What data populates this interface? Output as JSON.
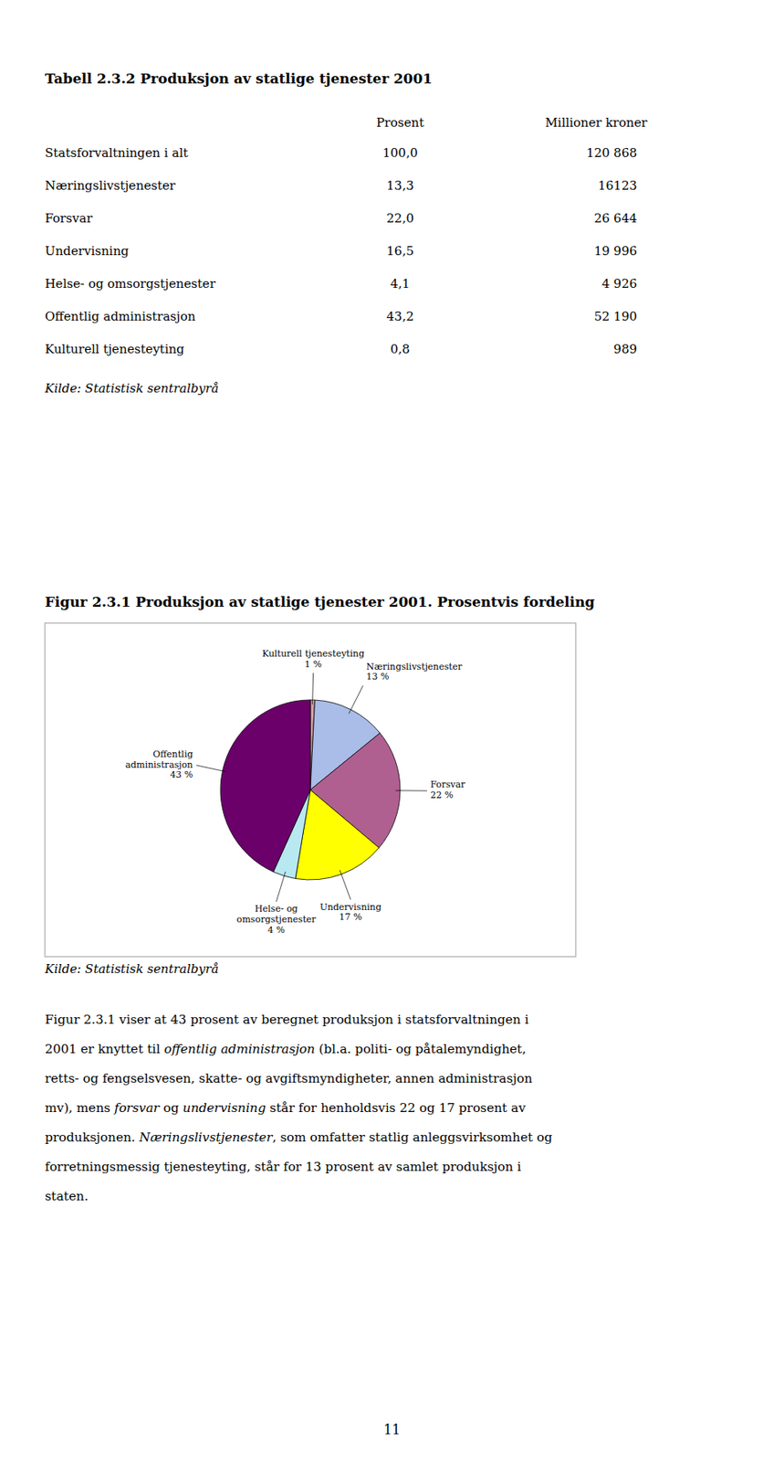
{
  "page_title": "Tabell 2.3.2 Produksjon av statlige tjenester 2001",
  "table": {
    "headers": [
      "Prosent",
      "Millioner kroner"
    ],
    "rows": [
      [
        "Statsforvaltningen i alt",
        "100,0",
        "120 868"
      ],
      [
        "Næringslivstjenester",
        "13,3",
        "16123"
      ],
      [
        "Forsvar",
        "22,0",
        "26 644"
      ],
      [
        "Undervisning",
        "16,5",
        "19 996"
      ],
      [
        "Helse- og omsorgstjenester",
        "4,1",
        "4 926"
      ],
      [
        "Offentlig administrasjon",
        "43,2",
        "52 190"
      ],
      [
        "Kulturell tjenesteyting",
        "0,8",
        "989"
      ]
    ]
  },
  "sources": [
    "Kilde: Statistisk sentralbyrå",
    "Kilde: Statistisk sentralbyrå"
  ],
  "chart_data": {
    "type": "pie",
    "title": "Figur 2.3.1 Produksjon av statlige tjenester 2001. Prosentvis  fordeling",
    "categories": [
      "Kulturell tjenesteyting",
      "Næringslivstjenester",
      "Forsvar",
      "Undervisning",
      "Helse- og\nomsorgstjenester",
      "Offentlig\nadministrasjon"
    ],
    "values": [
      0.8,
      13.3,
      22.0,
      16.5,
      4.1,
      43.2
    ],
    "value_labels": [
      "1 %",
      "13 %",
      "22 %",
      "17 %",
      "4 %",
      "43 %"
    ],
    "colors": [
      "#D4A0A0",
      "#AABCE8",
      "#B06090",
      "#FFFF00",
      "#B8E8F0",
      "#6B006B"
    ]
  },
  "body_text": [
    "Figur 2.3.1 viser at 43 prosent av beregnet produksjon i statsforvaltningen i",
    "2001 er knyttet til offentlig administrasjon (bl.a. politi- og påtalemyndighet,",
    "retts- og fengselsvesen, skatte- og avgiftsmyndigheter, annen administrasjon",
    "mv), mens forsvar og undervisning står for henholdsvis 22 og 17 prosent av",
    "produksjonen. Næringslivstjenester, som omfatter statlig anleggsvirksomhet og",
    "forretningsmessig tjenesteyting, står for 13 prosent av samlet produksjon i",
    "staten."
  ],
  "page_number": "11"
}
